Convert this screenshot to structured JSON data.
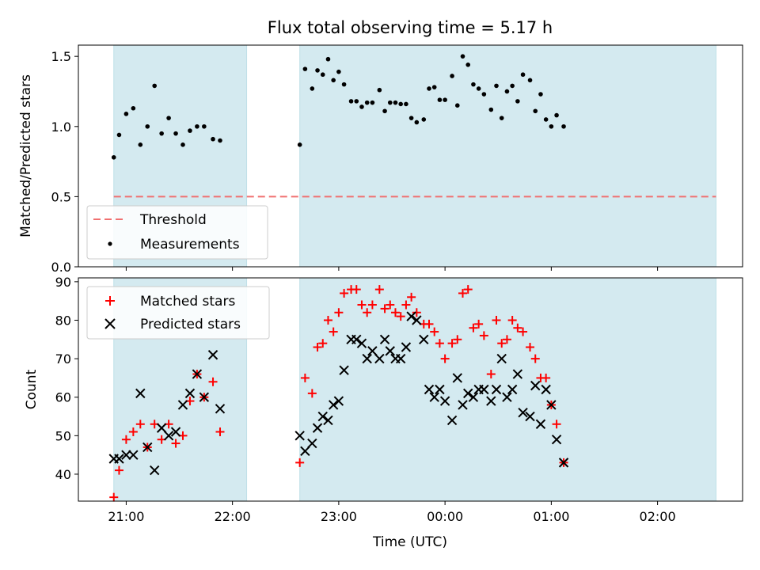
{
  "title": "Flux total observing time = 5.17 h",
  "colors": {
    "shade": "#d4eaf0",
    "threshold": "#f07070",
    "matched": "#ff0000",
    "predicted": "#000000",
    "measurement": "#000000"
  },
  "shaded_intervals": [
    {
      "start": "20:53",
      "end": "22:08"
    },
    {
      "start": "22:38",
      "end": "02:33"
    }
  ],
  "chart_data": [
    {
      "type": "scatter",
      "ylabel": "Matched/Predicted stars",
      "ylim": [
        0,
        1.58
      ],
      "yticks": [
        "0.0",
        "0.5",
        "1.0",
        "1.5"
      ],
      "threshold": {
        "name": "Threshold",
        "value": 0.5
      },
      "legend": {
        "placement": "lower-left",
        "entries": [
          "Threshold",
          "Measurements"
        ]
      },
      "series": [
        {
          "name": "Measurements",
          "points": [
            [
              "20:53",
              0.78
            ],
            [
              "20:56",
              0.94
            ],
            [
              "21:00",
              1.09
            ],
            [
              "21:04",
              1.13
            ],
            [
              "21:08",
              0.87
            ],
            [
              "21:12",
              1.0
            ],
            [
              "21:16",
              1.29
            ],
            [
              "21:20",
              0.95
            ],
            [
              "21:24",
              1.06
            ],
            [
              "21:28",
              0.95
            ],
            [
              "21:32",
              0.87
            ],
            [
              "21:36",
              0.97
            ],
            [
              "21:40",
              1.0
            ],
            [
              "21:44",
              1.0
            ],
            [
              "21:49",
              0.91
            ],
            [
              "21:53",
              0.9
            ],
            [
              "22:38",
              0.87
            ],
            [
              "22:41",
              1.41
            ],
            [
              "22:45",
              1.27
            ],
            [
              "22:48",
              1.4
            ],
            [
              "22:51",
              1.37
            ],
            [
              "22:54",
              1.48
            ],
            [
              "22:57",
              1.33
            ],
            [
              "23:00",
              1.39
            ],
            [
              "23:03",
              1.3
            ],
            [
              "23:07",
              1.18
            ],
            [
              "23:10",
              1.18
            ],
            [
              "23:13",
              1.14
            ],
            [
              "23:16",
              1.17
            ],
            [
              "23:19",
              1.17
            ],
            [
              "23:23",
              1.26
            ],
            [
              "23:26",
              1.11
            ],
            [
              "23:29",
              1.17
            ],
            [
              "23:32",
              1.17
            ],
            [
              "23:35",
              1.16
            ],
            [
              "23:38",
              1.16
            ],
            [
              "23:41",
              1.06
            ],
            [
              "23:44",
              1.03
            ],
            [
              "23:48",
              1.05
            ],
            [
              "23:51",
              1.27
            ],
            [
              "23:54",
              1.28
            ],
            [
              "23:57",
              1.19
            ],
            [
              "00:00",
              1.19
            ],
            [
              "00:04",
              1.36
            ],
            [
              "00:07",
              1.15
            ],
            [
              "00:10",
              1.5
            ],
            [
              "00:13",
              1.44
            ],
            [
              "00:16",
              1.3
            ],
            [
              "00:19",
              1.27
            ],
            [
              "00:22",
              1.23
            ],
            [
              "00:26",
              1.12
            ],
            [
              "00:29",
              1.29
            ],
            [
              "00:32",
              1.06
            ],
            [
              "00:35",
              1.25
            ],
            [
              "00:38",
              1.29
            ],
            [
              "00:41",
              1.18
            ],
            [
              "00:44",
              1.37
            ],
            [
              "00:48",
              1.33
            ],
            [
              "00:51",
              1.11
            ],
            [
              "00:54",
              1.23
            ],
            [
              "00:57",
              1.05
            ],
            [
              "01:00",
              1.0
            ],
            [
              "01:03",
              1.08
            ],
            [
              "01:07",
              1.0
            ]
          ]
        }
      ]
    },
    {
      "type": "scatter",
      "xlabel": "Time (UTC)",
      "ylabel": "Count",
      "ylim": [
        33,
        91
      ],
      "yticks": [
        "40",
        "50",
        "60",
        "70",
        "80",
        "90"
      ],
      "xticks": [
        "21:00",
        "22:00",
        "23:00",
        "00:00",
        "01:00",
        "02:00"
      ],
      "xlim": [
        "20:33",
        "02:48"
      ],
      "legend": {
        "placement": "upper-left",
        "entries": [
          "Matched stars",
          "Predicted stars"
        ]
      },
      "series": [
        {
          "name": "Matched stars",
          "marker": "plus",
          "points": [
            [
              "20:53",
              34
            ],
            [
              "20:56",
              41
            ],
            [
              "21:00",
              49
            ],
            [
              "21:04",
              51
            ],
            [
              "21:08",
              53
            ],
            [
              "21:12",
              47
            ],
            [
              "21:16",
              53
            ],
            [
              "21:20",
              49
            ],
            [
              "21:24",
              53
            ],
            [
              "21:28",
              48
            ],
            [
              "21:32",
              50
            ],
            [
              "21:36",
              59
            ],
            [
              "21:40",
              66
            ],
            [
              "21:44",
              60
            ],
            [
              "21:49",
              64
            ],
            [
              "21:53",
              51
            ],
            [
              "22:38",
              43
            ],
            [
              "22:41",
              65
            ],
            [
              "22:45",
              61
            ],
            [
              "22:48",
              73
            ],
            [
              "22:51",
              74
            ],
            [
              "22:54",
              80
            ],
            [
              "22:57",
              77
            ],
            [
              "23:00",
              82
            ],
            [
              "23:03",
              87
            ],
            [
              "23:07",
              88
            ],
            [
              "23:10",
              88
            ],
            [
              "23:13",
              84
            ],
            [
              "23:16",
              82
            ],
            [
              "23:19",
              84
            ],
            [
              "23:23",
              88
            ],
            [
              "23:26",
              83
            ],
            [
              "23:29",
              84
            ],
            [
              "23:32",
              82
            ],
            [
              "23:35",
              81
            ],
            [
              "23:38",
              84
            ],
            [
              "23:41",
              86
            ],
            [
              "23:44",
              82
            ],
            [
              "23:48",
              79
            ],
            [
              "23:51",
              79
            ],
            [
              "23:54",
              77
            ],
            [
              "23:57",
              74
            ],
            [
              "00:00",
              70
            ],
            [
              "00:04",
              74
            ],
            [
              "00:07",
              75
            ],
            [
              "00:10",
              87
            ],
            [
              "00:13",
              88
            ],
            [
              "00:16",
              78
            ],
            [
              "00:19",
              79
            ],
            [
              "00:22",
              76
            ],
            [
              "00:26",
              66
            ],
            [
              "00:29",
              80
            ],
            [
              "00:32",
              74
            ],
            [
              "00:35",
              75
            ],
            [
              "00:38",
              80
            ],
            [
              "00:41",
              78
            ],
            [
              "00:44",
              77
            ],
            [
              "00:48",
              73
            ],
            [
              "00:51",
              70
            ],
            [
              "00:54",
              65
            ],
            [
              "00:57",
              65
            ],
            [
              "01:00",
              58
            ],
            [
              "01:03",
              53
            ],
            [
              "01:07",
              43
            ]
          ]
        },
        {
          "name": "Predicted stars",
          "marker": "x",
          "points": [
            [
              "20:53",
              44
            ],
            [
              "20:56",
              44
            ],
            [
              "21:00",
              45
            ],
            [
              "21:04",
              45
            ],
            [
              "21:08",
              61
            ],
            [
              "21:12",
              47
            ],
            [
              "21:16",
              41
            ],
            [
              "21:20",
              52
            ],
            [
              "21:24",
              50
            ],
            [
              "21:28",
              51
            ],
            [
              "21:32",
              58
            ],
            [
              "21:36",
              61
            ],
            [
              "21:40",
              66
            ],
            [
              "21:44",
              60
            ],
            [
              "21:49",
              71
            ],
            [
              "21:53",
              57
            ],
            [
              "22:38",
              50
            ],
            [
              "22:41",
              46
            ],
            [
              "22:45",
              48
            ],
            [
              "22:48",
              52
            ],
            [
              "22:51",
              55
            ],
            [
              "22:54",
              54
            ],
            [
              "22:57",
              58
            ],
            [
              "23:00",
              59
            ],
            [
              "23:03",
              67
            ],
            [
              "23:07",
              75
            ],
            [
              "23:10",
              75
            ],
            [
              "23:13",
              74
            ],
            [
              "23:16",
              70
            ],
            [
              "23:19",
              72
            ],
            [
              "23:23",
              70
            ],
            [
              "23:26",
              75
            ],
            [
              "23:29",
              72
            ],
            [
              "23:32",
              70
            ],
            [
              "23:35",
              70
            ],
            [
              "23:38",
              73
            ],
            [
              "23:41",
              81
            ],
            [
              "23:44",
              80
            ],
            [
              "23:48",
              75
            ],
            [
              "23:51",
              62
            ],
            [
              "23:54",
              60
            ],
            [
              "23:57",
              62
            ],
            [
              "00:00",
              59
            ],
            [
              "00:04",
              54
            ],
            [
              "00:07",
              65
            ],
            [
              "00:10",
              58
            ],
            [
              "00:13",
              61
            ],
            [
              "00:16",
              60
            ],
            [
              "00:19",
              62
            ],
            [
              "00:22",
              62
            ],
            [
              "00:26",
              59
            ],
            [
              "00:29",
              62
            ],
            [
              "00:32",
              70
            ],
            [
              "00:35",
              60
            ],
            [
              "00:38",
              62
            ],
            [
              "00:41",
              66
            ],
            [
              "00:44",
              56
            ],
            [
              "00:48",
              55
            ],
            [
              "00:51",
              63
            ],
            [
              "00:54",
              53
            ],
            [
              "00:57",
              62
            ],
            [
              "01:00",
              58
            ],
            [
              "01:03",
              49
            ],
            [
              "01:07",
              43
            ]
          ]
        }
      ]
    }
  ]
}
